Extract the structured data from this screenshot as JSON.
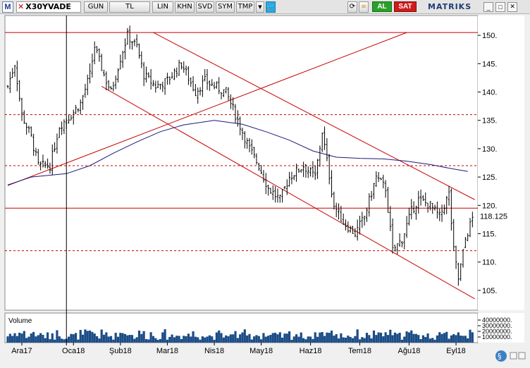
{
  "toolbar": {
    "logo": "M",
    "symbol": "X30YVADE",
    "buttons": [
      "GUN",
      "TL",
      "LIN",
      "KHN",
      "SVD",
      "SYM",
      "TMP"
    ],
    "buy_label": "AL",
    "sell_label": "SAT",
    "brand": "MATRIKS",
    "icons": [
      "twitter-icon",
      "refresh-icon",
      "link-icon"
    ]
  },
  "chart_data": {
    "type": "line",
    "subtype": "ohlc-bars",
    "title": "",
    "xlabel": "",
    "ylabel": "",
    "ylim": [
      101.5,
      153.5
    ],
    "yticks": [
      105,
      110,
      115,
      120,
      125,
      130,
      135,
      140,
      145,
      150
    ],
    "ytick_labels": [
      "105.",
      "110.",
      "115.",
      "120.",
      "125.",
      "130.",
      "135.",
      "140.",
      "145.",
      "150."
    ],
    "last_price": 118.125,
    "last_price_label": "118.125",
    "x_months": [
      "Ara17",
      "Oca18",
      "Şub18",
      "Mar18",
      "Nis18",
      "May18",
      "Haz18",
      "Tem18",
      "Ağu18",
      "Eyl18"
    ],
    "x_month_positions": [
      6,
      28,
      48,
      68,
      88,
      108,
      129,
      150,
      171,
      191
    ],
    "x_count": 199,
    "price_points": [
      [
        0,
        141
      ],
      [
        3,
        145
      ],
      [
        6,
        136
      ],
      [
        10,
        132
      ],
      [
        13,
        127
      ],
      [
        18,
        127
      ],
      [
        22,
        134
      ],
      [
        27,
        136
      ],
      [
        31,
        138
      ],
      [
        35,
        143
      ],
      [
        37,
        148
      ],
      [
        41,
        143
      ],
      [
        44,
        140
      ],
      [
        48,
        146
      ],
      [
        51,
        150
      ],
      [
        55,
        148
      ],
      [
        58,
        143
      ],
      [
        63,
        141
      ],
      [
        68,
        142
      ],
      [
        74,
        145
      ],
      [
        80,
        140
      ],
      [
        84,
        142
      ],
      [
        88,
        141
      ],
      [
        93,
        140
      ],
      [
        97,
        136
      ],
      [
        103,
        130
      ],
      [
        107,
        127
      ],
      [
        111,
        123
      ],
      [
        116,
        121
      ],
      [
        120,
        125
      ],
      [
        126,
        127
      ],
      [
        131,
        125
      ],
      [
        134,
        133
      ],
      [
        139,
        120
      ],
      [
        143,
        117
      ],
      [
        148,
        115
      ],
      [
        152,
        118
      ],
      [
        157,
        125
      ],
      [
        161,
        123
      ],
      [
        164,
        112
      ],
      [
        168,
        114
      ],
      [
        172,
        119
      ],
      [
        175,
        121
      ],
      [
        180,
        120
      ],
      [
        184,
        118
      ],
      [
        188,
        122
      ],
      [
        190,
        112
      ],
      [
        192,
        107
      ],
      [
        195,
        114
      ],
      [
        199,
        119
      ]
    ],
    "moving_average": [
      [
        0,
        123.6
      ],
      [
        10,
        125
      ],
      [
        25,
        125.6
      ],
      [
        35,
        127
      ],
      [
        45,
        129.2
      ],
      [
        55,
        131.2
      ],
      [
        65,
        133
      ],
      [
        75,
        134.2
      ],
      [
        88,
        135
      ],
      [
        100,
        134.3
      ],
      [
        110,
        133
      ],
      [
        120,
        131.5
      ],
      [
        130,
        129.6
      ],
      [
        140,
        128.5
      ],
      [
        150,
        128.3
      ],
      [
        160,
        128.2
      ],
      [
        170,
        127.8
      ],
      [
        180,
        127.2
      ],
      [
        190,
        126.4
      ],
      [
        196,
        126
      ]
    ],
    "trendlines": [
      {
        "from": [
          0,
          123.5
        ],
        "to": [
          170,
          150.5
        ]
      },
      {
        "from": [
          62,
          150.5
        ],
        "to": [
          199,
          121
        ]
      },
      {
        "from": [
          40,
          141
        ],
        "to": [
          199,
          103.5
        ]
      }
    ],
    "horizontal_lines": [
      {
        "value": 150.5,
        "style": "solid"
      },
      {
        "value": 136,
        "style": "dashed"
      },
      {
        "value": 127,
        "style": "dashed"
      },
      {
        "value": 119.5,
        "style": "solid"
      },
      {
        "value": 112,
        "style": "dashed"
      }
    ],
    "cursor_x": 25,
    "volume": {
      "label": "Volume",
      "ytick_labels": [
        "40000000.",
        "30000000.",
        "20000000.",
        "10000000."
      ]
    }
  },
  "colors": {
    "background": "#ffffff",
    "bars": "#000000",
    "moving_average": "#1a1a7a",
    "trendline": "#c80000",
    "volume": "#1b4c86",
    "cursor": "#000000"
  }
}
